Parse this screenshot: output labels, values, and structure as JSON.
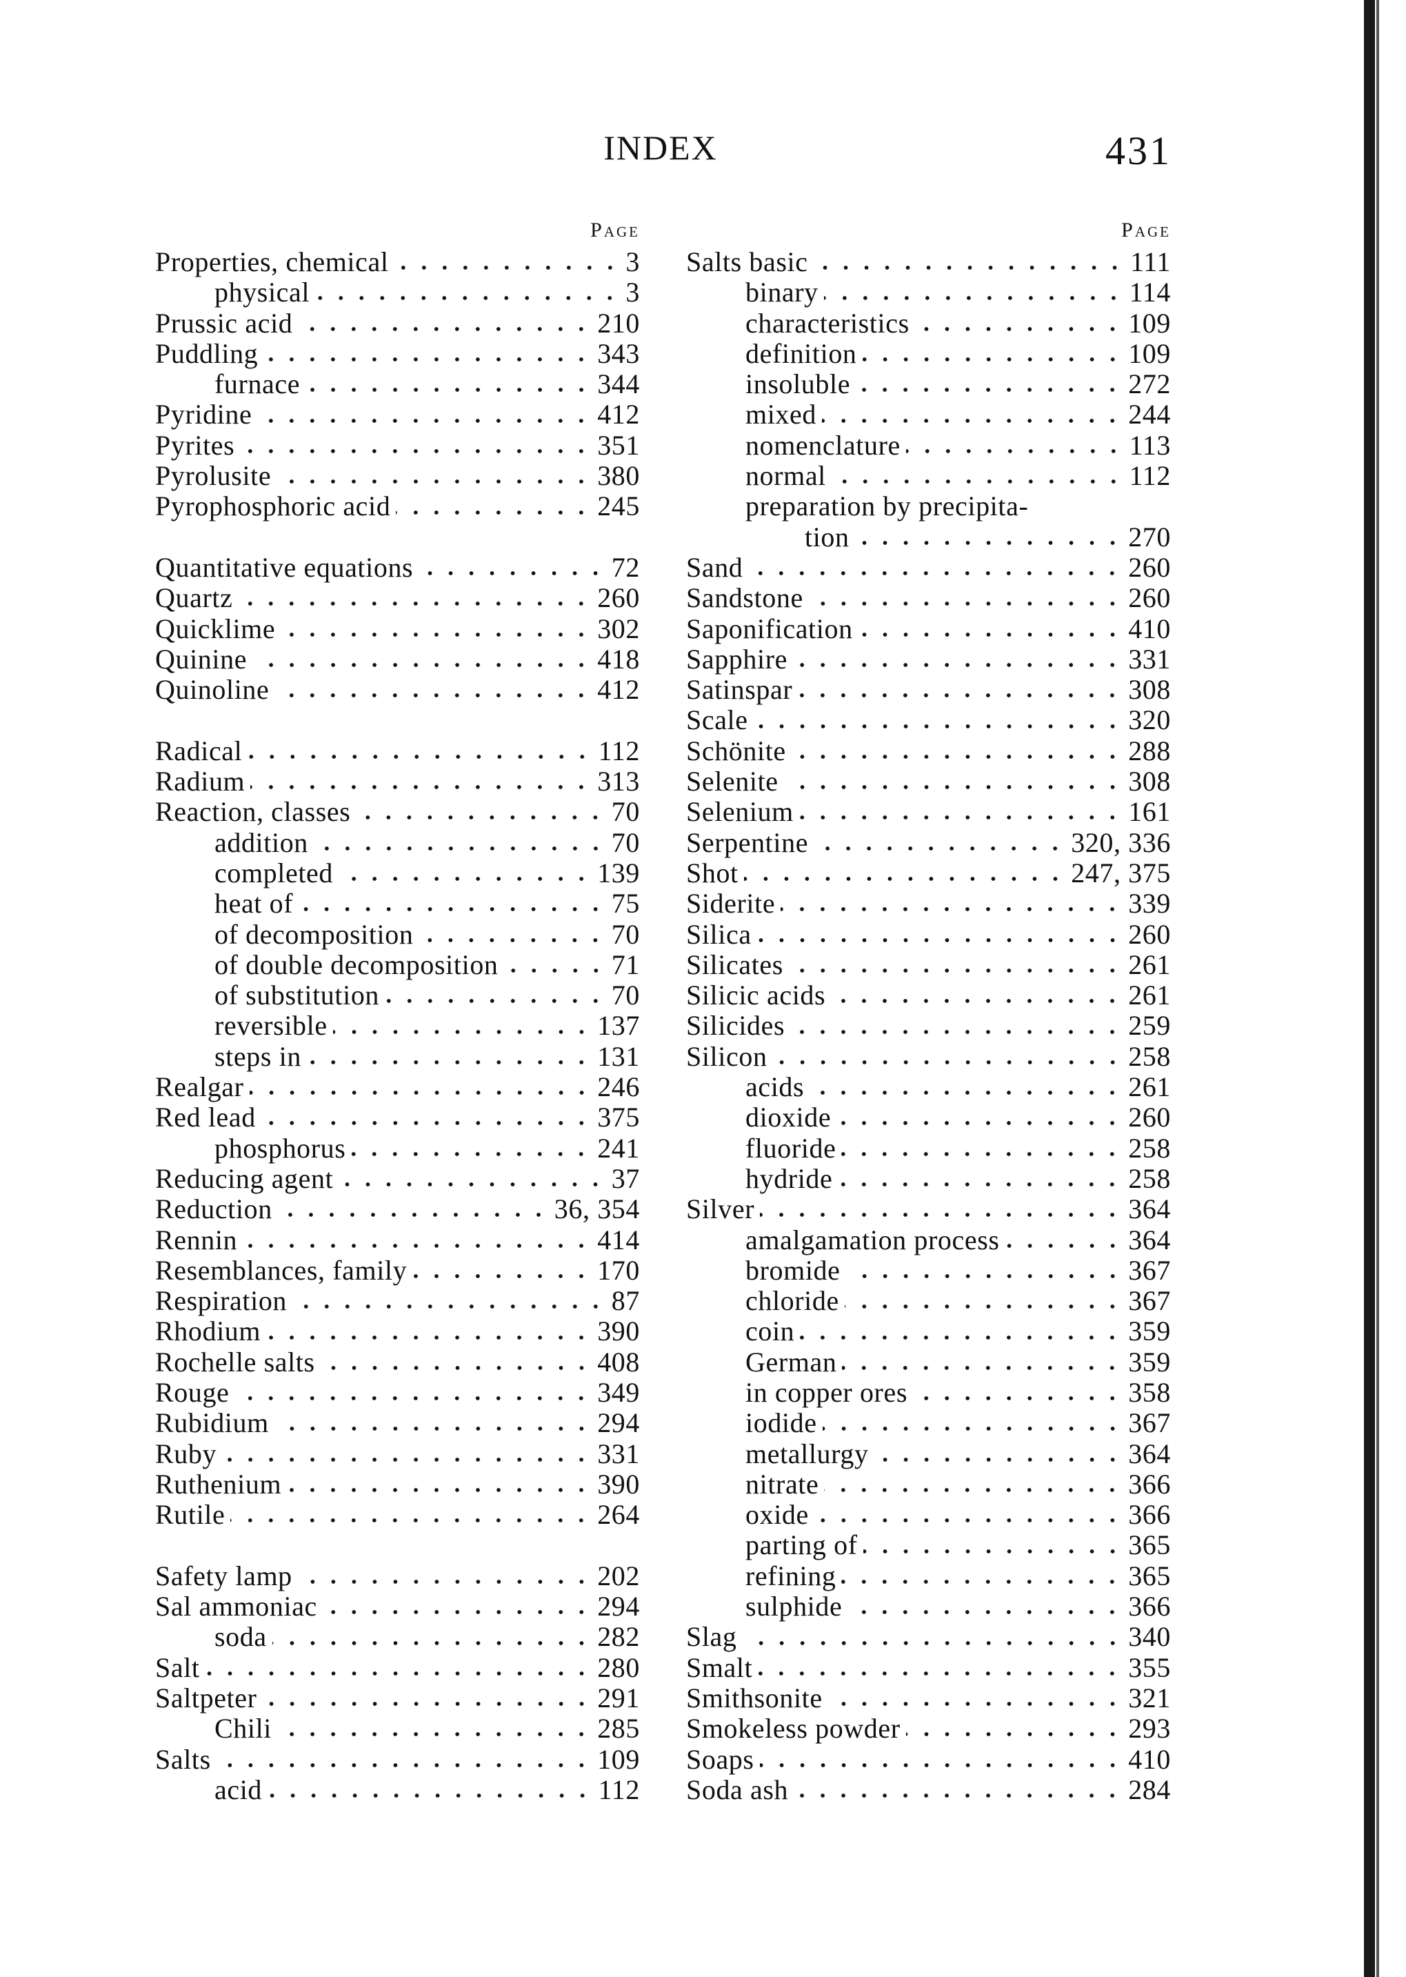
{
  "header": {
    "title": "INDEX",
    "page_number": "431"
  },
  "page_label": "Page",
  "left_column": [
    {
      "term": "Properties, chemical",
      "page": "3",
      "level": 0
    },
    {
      "term": "physical",
      "page": "3",
      "level": 1
    },
    {
      "term": "Prussic acid",
      "page": "210",
      "level": 0
    },
    {
      "term": "Puddling",
      "page": "343",
      "level": 0
    },
    {
      "term": "furnace",
      "page": "344",
      "level": 1
    },
    {
      "term": "Pyridine",
      "page": "412",
      "level": 0
    },
    {
      "term": "Pyrites",
      "page": "351",
      "level": 0
    },
    {
      "term": "Pyrolusite",
      "page": "380",
      "level": 0
    },
    {
      "term": "Pyrophosphoric acid",
      "page": "245",
      "level": 0
    },
    {
      "blank": true
    },
    {
      "term": "Quantitative equations",
      "page": "72",
      "level": 0
    },
    {
      "term": "Quartz",
      "page": "260",
      "level": 0
    },
    {
      "term": "Quicklime",
      "page": "302",
      "level": 0
    },
    {
      "term": "Quinine",
      "page": "418",
      "level": 0
    },
    {
      "term": "Quinoline",
      "page": "412",
      "level": 0
    },
    {
      "blank": true
    },
    {
      "term": "Radical",
      "page": "112",
      "level": 0
    },
    {
      "term": "Radium",
      "page": "313",
      "level": 0
    },
    {
      "term": "Reaction, classes",
      "page": "70",
      "level": 0
    },
    {
      "term": "addition",
      "page": "70",
      "level": 1
    },
    {
      "term": "completed",
      "page": "139",
      "level": 1
    },
    {
      "term": "heat of",
      "page": "75",
      "level": 1
    },
    {
      "term": "of decomposition",
      "page": "70",
      "level": 1
    },
    {
      "term": "of double decomposition",
      "page": "71",
      "level": 1
    },
    {
      "term": "of substitution",
      "page": "70",
      "level": 1
    },
    {
      "term": "reversible",
      "page": "137",
      "level": 1
    },
    {
      "term": "steps in",
      "page": "131",
      "level": 1
    },
    {
      "term": "Realgar",
      "page": "246",
      "level": 0
    },
    {
      "term": "Red lead",
      "page": "375",
      "level": 0
    },
    {
      "term": "phosphorus",
      "page": "241",
      "level": 1
    },
    {
      "term": "Reducing agent",
      "page": "37",
      "level": 0
    },
    {
      "term": "Reduction",
      "page": "36, 354",
      "level": 0
    },
    {
      "term": "Rennin",
      "page": "414",
      "level": 0
    },
    {
      "term": "Resemblances, family",
      "page": "170",
      "level": 0
    },
    {
      "term": "Respiration",
      "page": "87",
      "level": 0
    },
    {
      "term": "Rhodium",
      "page": "390",
      "level": 0
    },
    {
      "term": "Rochelle salts",
      "page": "408",
      "level": 0
    },
    {
      "term": "Rouge",
      "page": "349",
      "level": 0
    },
    {
      "term": "Rubidium",
      "page": "294",
      "level": 0
    },
    {
      "term": "Ruby",
      "page": "331",
      "level": 0
    },
    {
      "term": "Ruthenium",
      "page": "390",
      "level": 0
    },
    {
      "term": "Rutile",
      "page": "264",
      "level": 0
    },
    {
      "blank": true
    },
    {
      "term": "Safety lamp",
      "page": "202",
      "level": 0
    },
    {
      "term": "Sal ammoniac",
      "page": "294",
      "level": 0
    },
    {
      "term": "soda",
      "page": "282",
      "level": 1
    },
    {
      "term": "Salt",
      "page": "280",
      "level": 0
    },
    {
      "term": "Saltpeter",
      "page": "291",
      "level": 0
    },
    {
      "term": "Chili",
      "page": "285",
      "level": 1
    },
    {
      "term": "Salts",
      "page": "109",
      "level": 0
    },
    {
      "term": "acid",
      "page": "112",
      "level": 1
    }
  ],
  "right_column": [
    {
      "term": "Salts basic",
      "page": "111",
      "level": 0
    },
    {
      "term": "binary",
      "page": "114",
      "level": 1
    },
    {
      "term": "characteristics",
      "page": "109",
      "level": 1
    },
    {
      "term": "definition",
      "page": "109",
      "level": 1
    },
    {
      "term": "insoluble",
      "page": "272",
      "level": 1
    },
    {
      "term": "mixed",
      "page": "244",
      "level": 1
    },
    {
      "term": "nomenclature",
      "page": "113",
      "level": 1
    },
    {
      "term": "normal",
      "page": "112",
      "level": 1
    },
    {
      "term": "preparation by precipita-",
      "page": "",
      "level": 1
    },
    {
      "term": "tion",
      "page": "270",
      "level": 2
    },
    {
      "term": "Sand",
      "page": "260",
      "level": 0
    },
    {
      "term": "Sandstone",
      "page": "260",
      "level": 0
    },
    {
      "term": "Saponification",
      "page": "410",
      "level": 0
    },
    {
      "term": "Sapphire",
      "page": "331",
      "level": 0
    },
    {
      "term": "Satinspar",
      "page": "308",
      "level": 0
    },
    {
      "term": "Scale",
      "page": "320",
      "level": 0
    },
    {
      "term": "Schönite",
      "page": "288",
      "level": 0
    },
    {
      "term": "Selenite",
      "page": "308",
      "level": 0
    },
    {
      "term": "Selenium",
      "page": "161",
      "level": 0
    },
    {
      "term": "Serpentine",
      "page": "320, 336",
      "level": 0
    },
    {
      "term": "Shot",
      "page": "247, 375",
      "level": 0
    },
    {
      "term": "Siderite",
      "page": "339",
      "level": 0
    },
    {
      "term": "Silica",
      "page": "260",
      "level": 0
    },
    {
      "term": "Silicates",
      "page": "261",
      "level": 0
    },
    {
      "term": "Silicic acids",
      "page": "261",
      "level": 0
    },
    {
      "term": "Silicides",
      "page": "259",
      "level": 0
    },
    {
      "term": "Silicon",
      "page": "258",
      "level": 0
    },
    {
      "term": "acids",
      "page": "261",
      "level": 1
    },
    {
      "term": "dioxide",
      "page": "260",
      "level": 1
    },
    {
      "term": "fluoride",
      "page": "258",
      "level": 1
    },
    {
      "term": "hydride",
      "page": "258",
      "level": 1
    },
    {
      "term": "Silver",
      "page": "364",
      "level": 0
    },
    {
      "term": "amalgamation process",
      "page": "364",
      "level": 1
    },
    {
      "term": "bromide",
      "page": "367",
      "level": 1
    },
    {
      "term": "chloride",
      "page": "367",
      "level": 1
    },
    {
      "term": "coin",
      "page": "359",
      "level": 1
    },
    {
      "term": "German",
      "page": "359",
      "level": 1
    },
    {
      "term": "in copper ores",
      "page": "358",
      "level": 1
    },
    {
      "term": "iodide",
      "page": "367",
      "level": 1
    },
    {
      "term": "metallurgy",
      "page": "364",
      "level": 1
    },
    {
      "term": "nitrate",
      "page": "366",
      "level": 1
    },
    {
      "term": "oxide",
      "page": "366",
      "level": 1
    },
    {
      "term": "parting of",
      "page": "365",
      "level": 1
    },
    {
      "term": "refining",
      "page": "365",
      "level": 1
    },
    {
      "term": "sulphide",
      "page": "366",
      "level": 1
    },
    {
      "term": "Slag",
      "page": "340",
      "level": 0
    },
    {
      "term": "Smalt",
      "page": "355",
      "level": 0
    },
    {
      "term": "Smithsonite",
      "page": "321",
      "level": 0
    },
    {
      "term": "Smokeless powder",
      "page": "293",
      "level": 0
    },
    {
      "term": "Soaps",
      "page": "410",
      "level": 0
    },
    {
      "term": "Soda ash",
      "page": "284",
      "level": 0
    }
  ]
}
